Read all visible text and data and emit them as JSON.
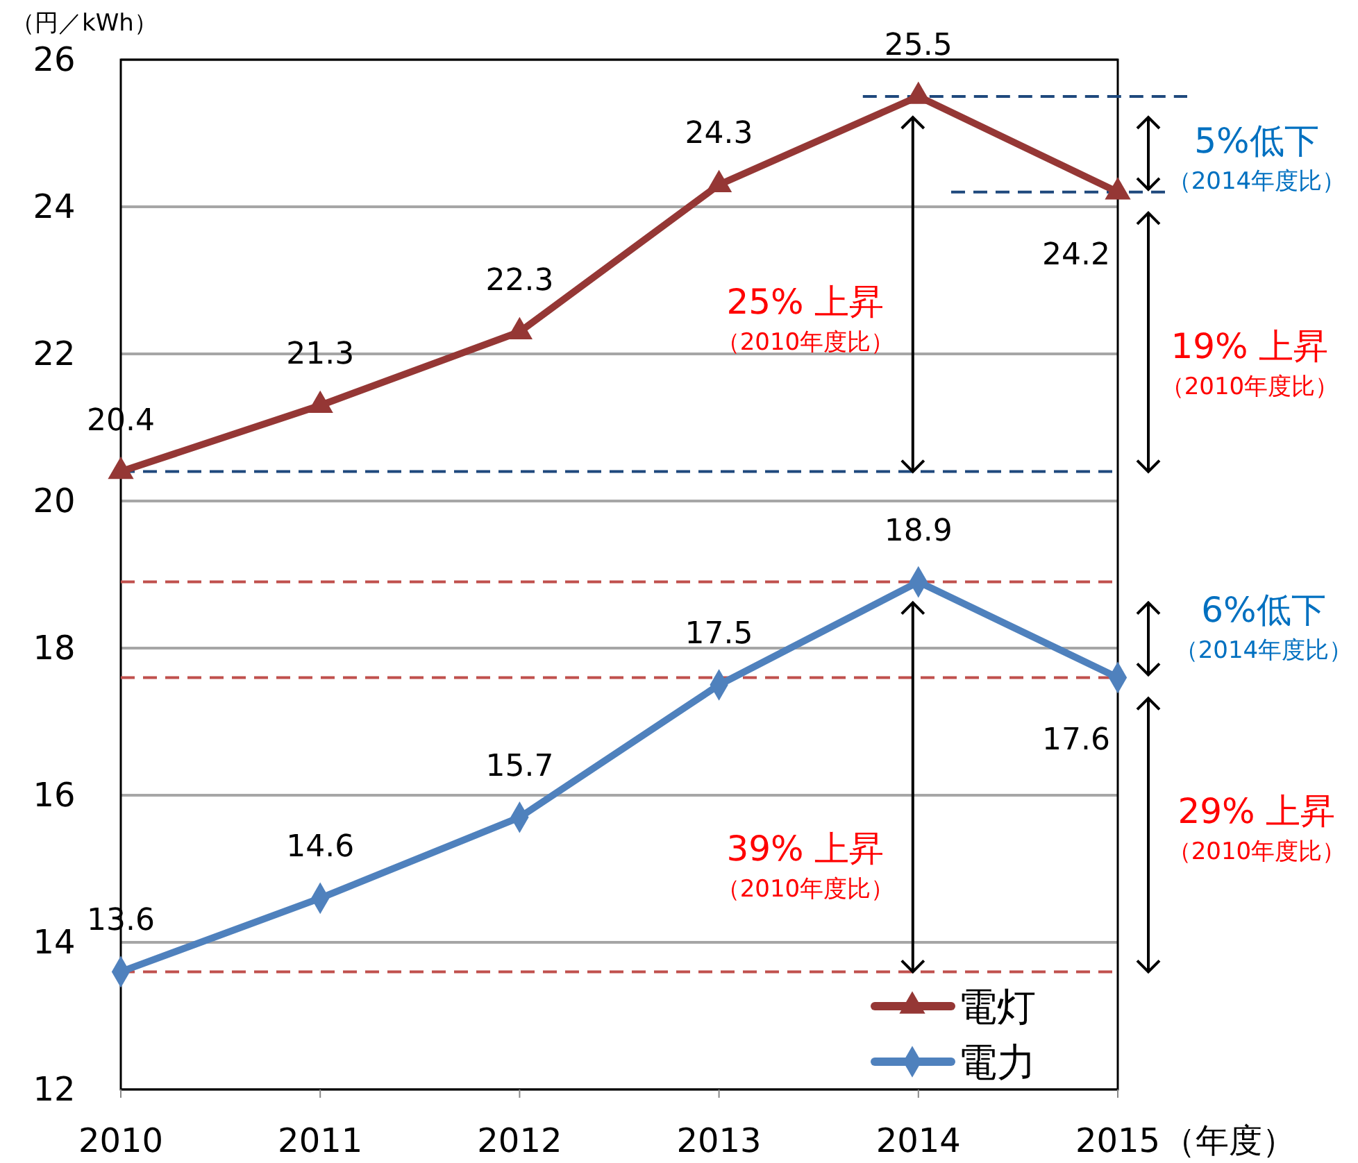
{
  "chart_data": {
    "type": "line",
    "categories": [
      "2010",
      "2011",
      "2012",
      "2013",
      "2014",
      "2015"
    ],
    "xlabel": "（年度）",
    "ylabel": "（円／kWh）",
    "series": [
      {
        "name": "電灯",
        "color": "#953735",
        "marker": "triangle",
        "values": [
          20.4,
          21.3,
          22.3,
          24.3,
          25.5,
          24.2
        ]
      },
      {
        "name": "電力",
        "color": "#4f81bd",
        "marker": "diamond",
        "values": [
          13.6,
          14.6,
          15.7,
          17.5,
          18.9,
          17.6
        ]
      }
    ],
    "ylim": [
      12,
      26
    ],
    "yticks": [
      12,
      14,
      16,
      18,
      20,
      22,
      24,
      26
    ],
    "grid": "y",
    "legend": "bottom right",
    "data_labels": true,
    "line_style": "solid",
    "ref_lines": [
      {
        "axis": "y",
        "value": 25.5,
        "color": "#1f497d",
        "line_style": "dashed"
      },
      {
        "axis": "y",
        "value": 24.2,
        "color": "#1f497d",
        "line_style": "dashed"
      },
      {
        "axis": "y",
        "value": 20.4,
        "color": "#1f497d",
        "line_style": "dashed"
      },
      {
        "axis": "y",
        "value": 18.9,
        "color": "#c0504d",
        "line_style": "dashed"
      },
      {
        "axis": "y",
        "value": 17.6,
        "color": "#c0504d",
        "line_style": "dashed"
      },
      {
        "axis": "y",
        "value": 13.6,
        "color": "#c0504d",
        "line_style": "dashed"
      }
    ],
    "annotations": [
      "25% 上昇",
      "（2010年度比）",
      "5%低下",
      "（2014年度比）",
      "19% 上昇",
      "（2010年度比）",
      "39% 上昇",
      "（2010年度比）",
      "6%低下",
      "（2014年度比）",
      "29% 上昇",
      "（2010年度比）"
    ]
  }
}
